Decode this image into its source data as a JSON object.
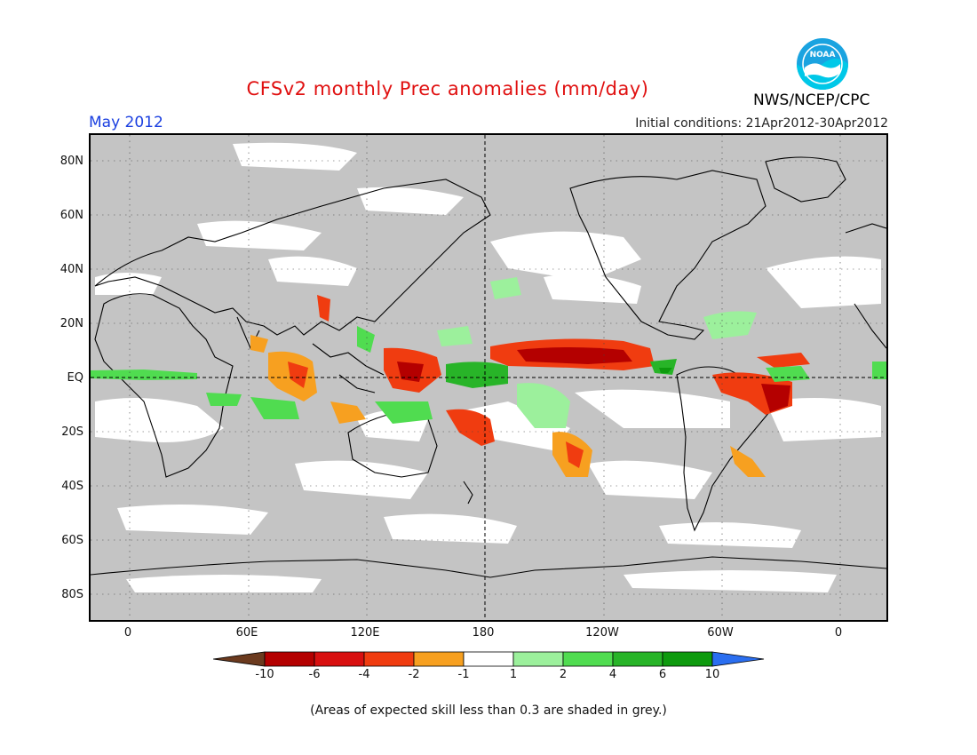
{
  "header": {
    "title": "CFSv2 monthly Prec anomalies (mm/day)",
    "month": "May 2012",
    "initial_conditions": "Initial conditions: 21Apr2012-30Apr2012",
    "agency": "NWS/NCEP/CPC",
    "logo_text": "NOAA",
    "logo_icon": "noaa-logo"
  },
  "map": {
    "projection": "equirectangular",
    "background_fill_meaning": "grey = areas of expected skill less than 0.3",
    "lat_labels": [
      "80N",
      "60N",
      "40N",
      "20N",
      "EQ",
      "20S",
      "40S",
      "60S",
      "80S"
    ],
    "lon_labels": [
      "0",
      "60E",
      "120E",
      "180",
      "120W",
      "60W",
      "0"
    ]
  },
  "colorbar": {
    "labels": [
      "-10",
      "-6",
      "-4",
      "-2",
      "-1",
      "1",
      "2",
      "4",
      "6",
      "10"
    ],
    "colors": [
      "#6b3a1e",
      "#b40000",
      "#d81010",
      "#f03c10",
      "#f7a020",
      "#ffffff",
      "#9cf09c",
      "#50dc50",
      "#28b428",
      "#0e9a0e",
      "#2a6ef0"
    ]
  },
  "footer": {
    "note": "(Areas of expected skill less than 0.3 are shaded in grey.)"
  }
}
